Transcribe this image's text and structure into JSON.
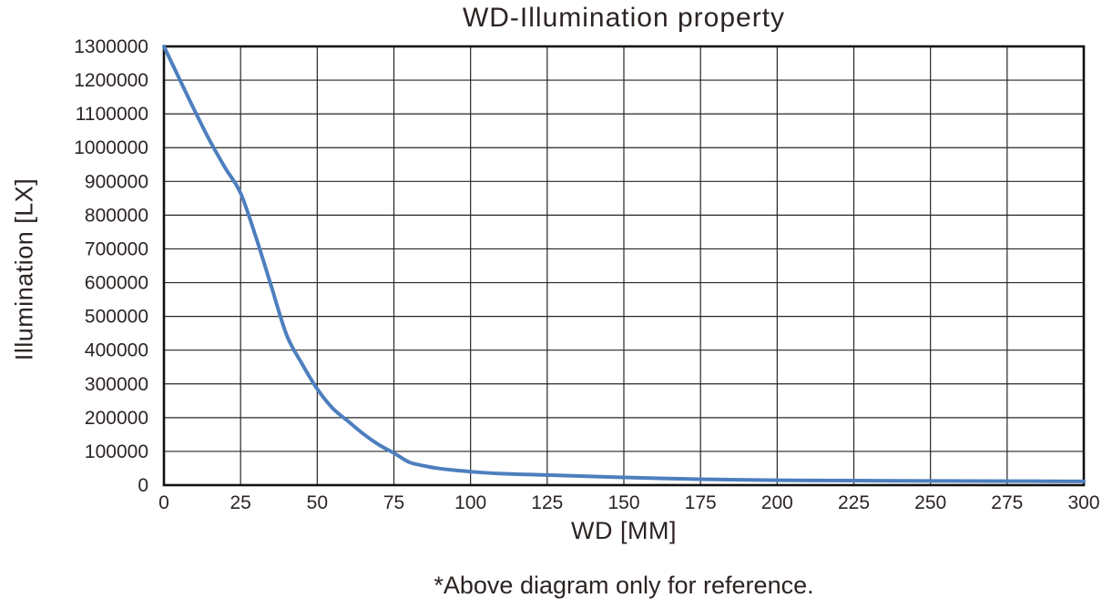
{
  "chart_data": {
    "type": "line",
    "title": "WD-Illumination property",
    "xlabel": "WD [MM]",
    "ylabel": "Illumination [LX]",
    "footnote": "*Above diagram only for reference.",
    "legend": false,
    "grid": true,
    "xlim": [
      0,
      300
    ],
    "ylim": [
      0,
      1300000
    ],
    "x_ticks": [
      0,
      25,
      50,
      75,
      100,
      125,
      150,
      175,
      200,
      225,
      250,
      275,
      300
    ],
    "y_ticks": [
      0,
      100000,
      200000,
      300000,
      400000,
      500000,
      600000,
      700000,
      800000,
      900000,
      1000000,
      1100000,
      1200000,
      1300000
    ],
    "x": [
      0,
      5,
      10,
      15,
      20,
      25,
      30,
      35,
      40,
      45,
      50,
      55,
      60,
      65,
      70,
      75,
      80,
      85,
      90,
      100,
      110,
      125,
      150,
      175,
      200,
      225,
      250,
      275,
      300
    ],
    "series": [
      {
        "name": "Illumination",
        "values": [
          1300000,
          1205000,
          1110000,
          1020000,
          940000,
          865000,
          735000,
          590000,
          445000,
          360000,
          285000,
          228000,
          190000,
          152000,
          120000,
          95000,
          68000,
          57000,
          49000,
          40000,
          34000,
          30000,
          23000,
          17500,
          14500,
          13500,
          12500,
          12000,
          11000
        ]
      }
    ],
    "colors": {
      "line": "#4d7fbe",
      "grid": "#262626",
      "axis": "#111111",
      "text": "#2b2422",
      "background": "#ffffff"
    }
  }
}
